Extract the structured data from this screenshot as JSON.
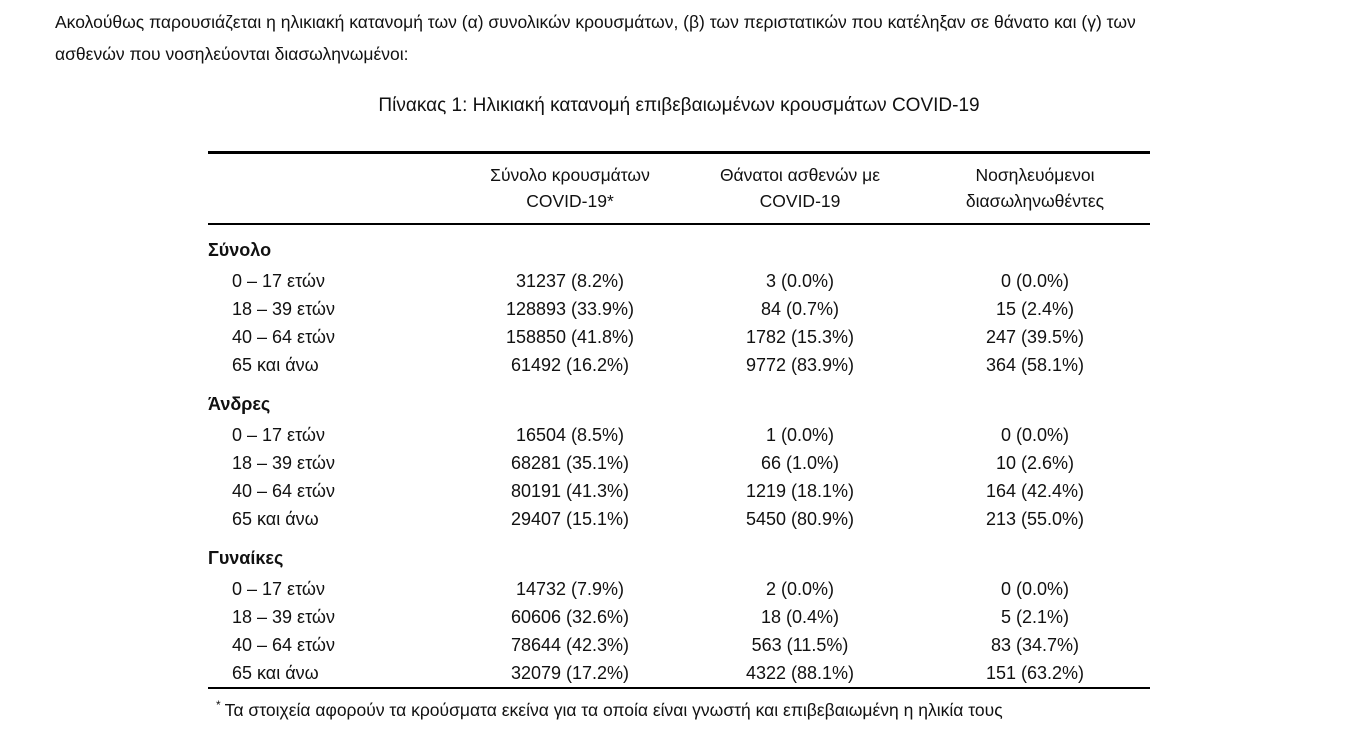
{
  "intro": {
    "line1": "Ακολούθως παρουσιάζεται η ηλικιακή κατανομή των (α) συνολικών κρουσμάτων, (β) των περιστατικών που κατέληξαν σε θάνατο και (γ) των",
    "line2": "ασθενών που νοσηλεύονται διασωληνωμένοι:"
  },
  "table": {
    "title": "Πίνακας 1: Ηλικιακή κατανομή επιβεβαιωμένων κρουσμάτων COVID-19",
    "col_headers": [
      {
        "line1": "Σύνολο κρουσμάτων",
        "line2": "COVID-19*"
      },
      {
        "line1": "Θάνατοι ασθενών με",
        "line2": "COVID-19"
      },
      {
        "line1": "Νοσηλευόμενοι",
        "line2": "διασωληνωθέντες"
      }
    ],
    "groups": [
      {
        "label": "Σύνολο",
        "rows": [
          {
            "age": "0 – 17 ετών",
            "cases": "31237 (8.2%)",
            "deaths": "3 (0.0%)",
            "intubated": "0 (0.0%)"
          },
          {
            "age": "18 – 39 ετών",
            "cases": "128893 (33.9%)",
            "deaths": "84 (0.7%)",
            "intubated": "15 (2.4%)"
          },
          {
            "age": "40 – 64 ετών",
            "cases": "158850 (41.8%)",
            "deaths": "1782 (15.3%)",
            "intubated": "247 (39.5%)"
          },
          {
            "age": "65 και άνω",
            "cases": "61492 (16.2%)",
            "deaths": "9772 (83.9%)",
            "intubated": "364 (58.1%)"
          }
        ]
      },
      {
        "label": "Άνδρες",
        "rows": [
          {
            "age": "0 – 17 ετών",
            "cases": "16504 (8.5%)",
            "deaths": "1 (0.0%)",
            "intubated": "0 (0.0%)"
          },
          {
            "age": "18 – 39 ετών",
            "cases": "68281 (35.1%)",
            "deaths": "66 (1.0%)",
            "intubated": "10 (2.6%)"
          },
          {
            "age": "40 – 64 ετών",
            "cases": "80191 (41.3%)",
            "deaths": "1219 (18.1%)",
            "intubated": "164 (42.4%)"
          },
          {
            "age": "65 και άνω",
            "cases": "29407 (15.1%)",
            "deaths": "5450 (80.9%)",
            "intubated": "213 (55.0%)"
          }
        ]
      },
      {
        "label": "Γυναίκες",
        "rows": [
          {
            "age": "0 – 17 ετών",
            "cases": "14732 (7.9%)",
            "deaths": "2 (0.0%)",
            "intubated": "0 (0.0%)"
          },
          {
            "age": "18 – 39 ετών",
            "cases": "60606 (32.6%)",
            "deaths": "18 (0.4%)",
            "intubated": "5 (2.1%)"
          },
          {
            "age": "40 – 64 ετών",
            "cases": "78644 (42.3%)",
            "deaths": "563 (11.5%)",
            "intubated": "83 (34.7%)"
          },
          {
            "age": "65 και άνω",
            "cases": "32079 (17.2%)",
            "deaths": "4322 (88.1%)",
            "intubated": "151 (63.2%)"
          }
        ]
      }
    ],
    "footnote_marker": "*",
    "footnote_text": "Τα στοιχεία αφορούν τα κρούσματα εκείνα για τα οποία είναι γνωστή και επιβεβαιωμένη η ηλικία τους"
  },
  "colors": {
    "text": "#111111",
    "rule": "#000000",
    "background": "#ffffff"
  }
}
